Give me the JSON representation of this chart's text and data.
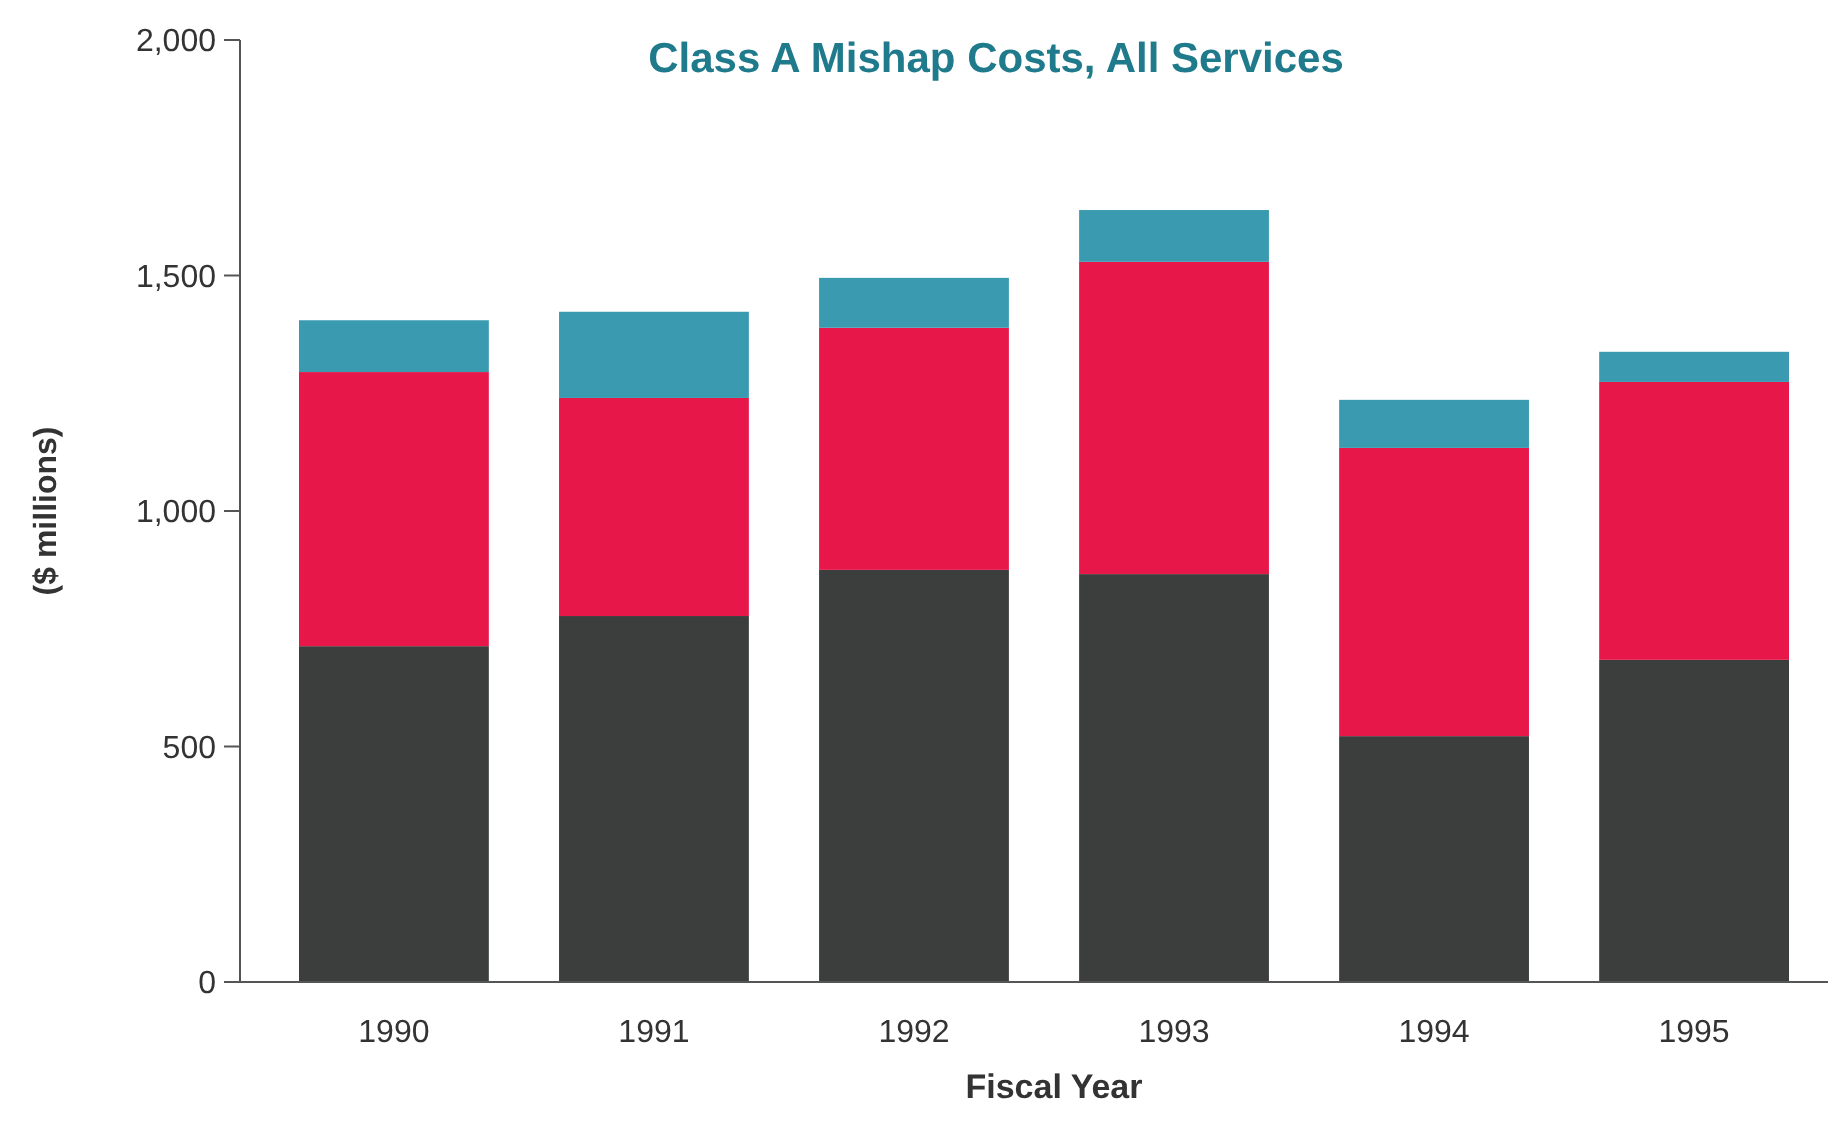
{
  "chart_data": {
    "type": "bar",
    "title": "Class A Mishap Costs, All Services",
    "xlabel": "Fiscal Year",
    "ylabel": "($ millions)",
    "categories": [
      "1990",
      "1991",
      "1992",
      "1993",
      "1994",
      "1995"
    ],
    "stacked": true,
    "ylim": [
      0,
      2000
    ],
    "yticks": [
      0,
      {
        "value": 500,
        "label": "500"
      },
      {
        "value": 1000,
        "label": "1,000"
      },
      {
        "value": 1500,
        "label": "1,500"
      },
      {
        "value": 2000,
        "label": "2,000"
      }
    ],
    "grid": false,
    "series": [
      {
        "color": "#3b3e3c",
        "values": [
          713,
          777,
          875,
          866,
          522,
          684
        ]
      },
      {
        "color": "#e8174a",
        "values": [
          582,
          463,
          514,
          663,
          612,
          590
        ]
      },
      {
        "color": "#3a9bb0",
        "values": [
          110,
          183,
          106,
          110,
          102,
          64
        ]
      }
    ]
  }
}
